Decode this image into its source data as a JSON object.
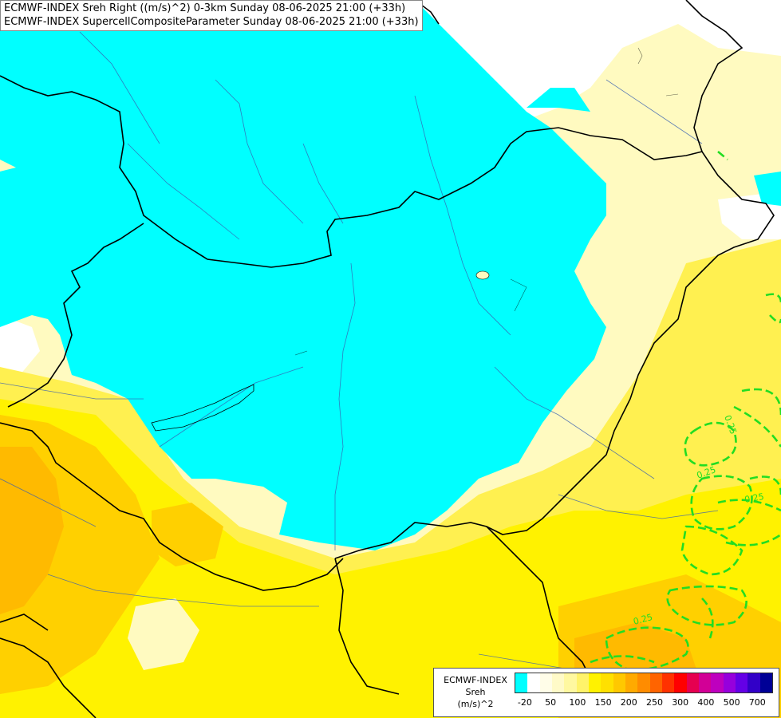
{
  "header": {
    "line1": "ECMWF-INDEX Sreh Right ((m/s)^2) 0-3km Sunday 08-06-2025 21:00 (+33h)",
    "line2": "ECMWF-INDEX SupercellCompositeParameter Sunday 08-06-2025 21:00 (+33h)"
  },
  "legend": {
    "line1": "ECMWF-INDEX",
    "line2": "Sreh",
    "line3": "(m/s)^2",
    "colors": [
      "#00ffff",
      "#ffffff",
      "#fffde8",
      "#fffac8",
      "#fff8a0",
      "#fff36a",
      "#fff200",
      "#ffe000",
      "#ffc800",
      "#ffaa00",
      "#ff8c00",
      "#ff6400",
      "#ff3200",
      "#ff0000",
      "#e60050",
      "#d20096",
      "#be00be",
      "#9600dc",
      "#6400e6",
      "#3200c8",
      "#000096"
    ],
    "ticks": [
      "-20",
      "50",
      "100",
      "150",
      "200",
      "250",
      "300",
      "400",
      "500",
      "700"
    ]
  },
  "contours": {
    "labels": [
      "0.25",
      "0.25",
      "0.25",
      "0.25"
    ],
    "color": "#22dd22"
  },
  "colors": {
    "cyan_region": "#00ffff",
    "pale_yellow": "#fffac8",
    "yellow": "#fff200",
    "orange": "#ffc800",
    "border": "#000000",
    "river": "#3a5fb0"
  }
}
